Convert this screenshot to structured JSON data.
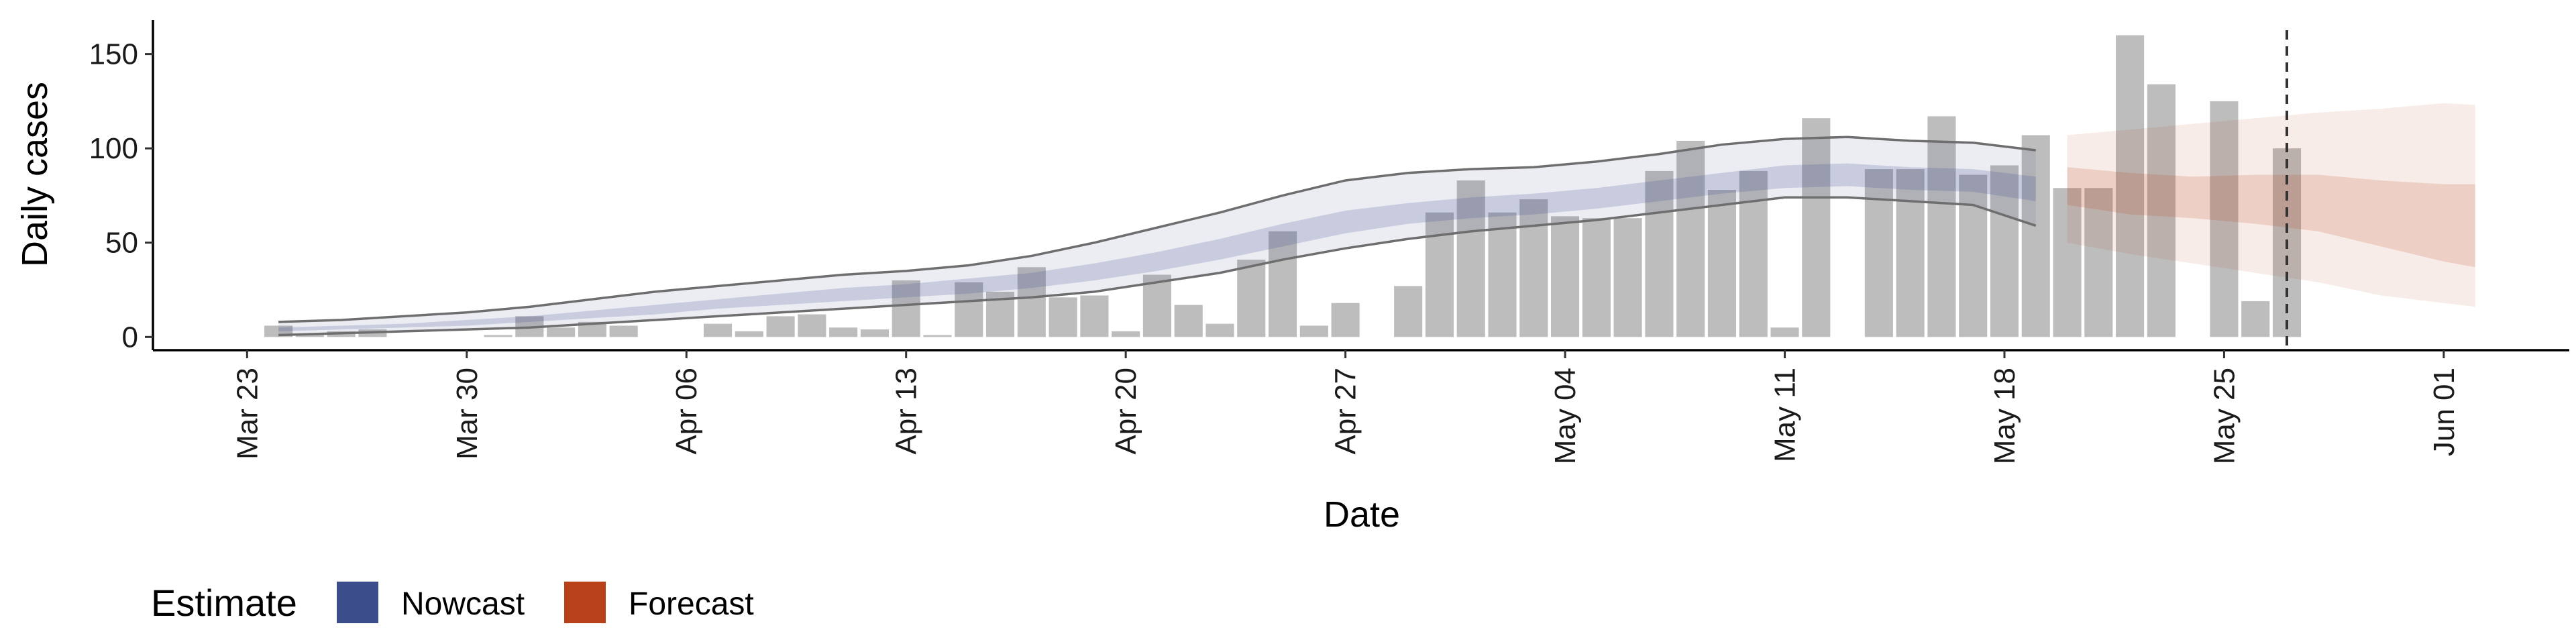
{
  "chart_data": {
    "type": "bar",
    "xlabel": "Date",
    "ylabel": "Daily cases",
    "x_tick_labels": [
      "Mar 23",
      "Mar 30",
      "Apr 06",
      "Apr 13",
      "Apr 20",
      "Apr 27",
      "May 04",
      "May 11",
      "May 18",
      "May 25",
      "Jun 01"
    ],
    "x_ticks": [
      "2020-03-23",
      "2020-03-30",
      "2020-04-06",
      "2020-04-13",
      "2020-04-20",
      "2020-04-27",
      "2020-05-04",
      "2020-05-11",
      "2020-05-18",
      "2020-05-25",
      "2020-06-01"
    ],
    "y_ticks": [
      0,
      50,
      100,
      150
    ],
    "ylim": [
      -7,
      168
    ],
    "xlim": [
      "2020-03-20",
      "2020-06-05"
    ],
    "grid": false,
    "legend_position": "bottom-left",
    "estimate_date": "2020-05-27",
    "colors": {
      "bars": "#bdbdbd",
      "nowcast": "#3b4d8a",
      "forecast": "#b8401a",
      "band_line": "#6e6e6e",
      "vline": "#333333"
    },
    "observed_cases": {
      "dates": [
        "2020-03-24",
        "2020-03-25",
        "2020-03-26",
        "2020-03-27",
        "2020-03-28",
        "2020-03-29",
        "2020-03-30",
        "2020-03-31",
        "2020-04-01",
        "2020-04-02",
        "2020-04-03",
        "2020-04-04",
        "2020-04-05",
        "2020-04-06",
        "2020-04-07",
        "2020-04-08",
        "2020-04-09",
        "2020-04-10",
        "2020-04-11",
        "2020-04-12",
        "2020-04-13",
        "2020-04-14",
        "2020-04-15",
        "2020-04-16",
        "2020-04-17",
        "2020-04-18",
        "2020-04-19",
        "2020-04-20",
        "2020-04-21",
        "2020-04-22",
        "2020-04-23",
        "2020-04-24",
        "2020-04-25",
        "2020-04-26",
        "2020-04-27",
        "2020-04-28",
        "2020-04-29",
        "2020-04-30",
        "2020-05-01",
        "2020-05-02",
        "2020-05-03",
        "2020-05-04",
        "2020-05-05",
        "2020-05-06",
        "2020-05-07",
        "2020-05-08",
        "2020-05-09",
        "2020-05-10",
        "2020-05-11",
        "2020-05-12",
        "2020-05-13",
        "2020-05-14",
        "2020-05-15",
        "2020-05-16",
        "2020-05-17",
        "2020-05-18",
        "2020-05-19",
        "2020-05-20",
        "2020-05-21",
        "2020-05-22",
        "2020-05-23",
        "2020-05-24",
        "2020-05-25",
        "2020-05-26",
        "2020-05-27"
      ],
      "values": [
        6,
        1,
        3,
        4,
        0,
        0,
        0,
        1,
        11,
        5,
        8,
        6,
        0,
        0,
        7,
        3,
        11,
        12,
        5,
        4,
        30,
        1,
        29,
        24,
        37,
        21,
        22,
        3,
        33,
        17,
        7,
        41,
        56,
        6,
        18,
        0,
        27,
        66,
        83,
        66,
        73,
        64,
        63,
        63,
        88,
        104,
        78,
        88,
        5,
        116,
        0,
        89,
        89,
        117,
        86,
        91,
        107,
        79,
        79,
        160,
        134,
        0,
        125,
        19,
        100
      ]
    },
    "nowcast": {
      "dates": [
        "2020-03-24",
        "2020-03-26",
        "2020-03-28",
        "2020-03-30",
        "2020-04-01",
        "2020-04-03",
        "2020-04-05",
        "2020-04-07",
        "2020-04-09",
        "2020-04-11",
        "2020-04-13",
        "2020-04-15",
        "2020-04-17",
        "2020-04-19",
        "2020-04-21",
        "2020-04-23",
        "2020-04-25",
        "2020-04-27",
        "2020-04-29",
        "2020-05-01",
        "2020-05-03",
        "2020-05-05",
        "2020-05-07",
        "2020-05-09",
        "2020-05-11",
        "2020-05-13",
        "2020-05-15",
        "2020-05-17",
        "2020-05-19"
      ],
      "upper_90": [
        8,
        9,
        11,
        13,
        16,
        20,
        24,
        27,
        30,
        33,
        35,
        38,
        43,
        50,
        58,
        66,
        75,
        83,
        87,
        89,
        90,
        93,
        97,
        102,
        105,
        106,
        104,
        103,
        99
      ],
      "upper_50": [
        5,
        6,
        7,
        9,
        11,
        14,
        17,
        20,
        23,
        26,
        28,
        31,
        34,
        39,
        45,
        52,
        60,
        67,
        71,
        74,
        76,
        79,
        83,
        87,
        91,
        92,
        90,
        89,
        85
      ],
      "lower_50": [
        3,
        4,
        5,
        6,
        8,
        10,
        12,
        15,
        17,
        19,
        21,
        23,
        26,
        30,
        35,
        41,
        48,
        55,
        60,
        63,
        65,
        68,
        72,
        76,
        79,
        80,
        78,
        77,
        72
      ],
      "lower_90": [
        1,
        2,
        3,
        4,
        5,
        7,
        9,
        11,
        13,
        15,
        17,
        19,
        21,
        24,
        29,
        34,
        41,
        47,
        52,
        56,
        59,
        62,
        66,
        70,
        74,
        74,
        72,
        70,
        59
      ]
    },
    "forecast": {
      "dates": [
        "2020-05-20",
        "2020-05-22",
        "2020-05-24",
        "2020-05-26",
        "2020-05-28",
        "2020-05-30",
        "2020-06-01",
        "2020-06-02"
      ],
      "upper_90": [
        107,
        110,
        113,
        116,
        119,
        121,
        124,
        123
      ],
      "upper_50": [
        90,
        87,
        85,
        86,
        86,
        83,
        81,
        81
      ],
      "lower_50": [
        70,
        65,
        63,
        60,
        56,
        48,
        40,
        37
      ],
      "lower_90": [
        50,
        44,
        39,
        34,
        29,
        22,
        18,
        16
      ]
    }
  },
  "legend": {
    "title": "Estimate",
    "items": [
      {
        "label": "Nowcast",
        "color": "#3b4d8a"
      },
      {
        "label": "Forecast",
        "color": "#b8401a"
      }
    ]
  }
}
